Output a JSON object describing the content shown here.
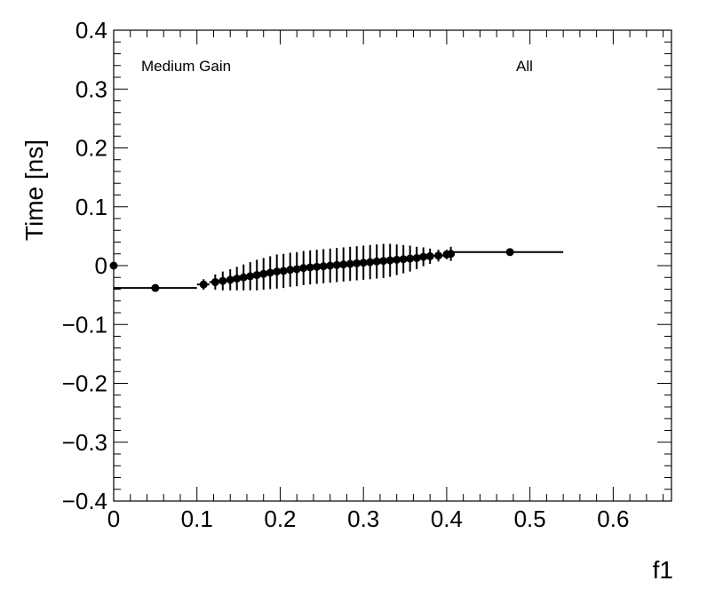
{
  "chart_data": {
    "type": "scatter",
    "title": "",
    "xlabel": "f1",
    "ylabel": "Time [ns]",
    "xlim": [
      0,
      0.67
    ],
    "ylim": [
      -0.4,
      0.4
    ],
    "x_ticks": [
      0,
      0.1,
      0.2,
      0.3,
      0.4,
      0.5,
      0.6
    ],
    "x_tick_labels": [
      "0",
      "0.1",
      "0.2",
      "0.3",
      "0.4",
      "0.5",
      "0.6"
    ],
    "y_ticks": [
      -0.4,
      -0.3,
      -0.2,
      -0.1,
      0,
      0.1,
      0.2,
      0.3,
      0.4
    ],
    "y_tick_labels": [
      "−0.4",
      "−0.3",
      "−0.2",
      "−0.1",
      "0",
      "0.1",
      "0.2",
      "0.3",
      "0.4"
    ],
    "grid": false,
    "annotations": [
      "Medium Gain",
      "All"
    ],
    "series": [
      {
        "marker": "circle",
        "color": "#000000",
        "points": [
          {
            "x": 0.0,
            "y": 0.0,
            "xlo": 0.0,
            "xhi": 0.0,
            "yerr": 0.0
          },
          {
            "x": 0.05,
            "y": -0.038,
            "xlo": 0.0,
            "xhi": 0.1,
            "yerr": 0.0
          },
          {
            "x": 0.108,
            "y": -0.032,
            "xlo": 0.1,
            "xhi": 0.115,
            "yerr": 0.009
          },
          {
            "x": 0.122,
            "y": -0.028,
            "xlo": 0.115,
            "xhi": 0.126,
            "yerr": 0.013
          },
          {
            "x": 0.131,
            "y": -0.026,
            "xlo": 0.126,
            "xhi": 0.136,
            "yerr": 0.016
          },
          {
            "x": 0.14,
            "y": -0.024,
            "xlo": 0.136,
            "xhi": 0.145,
            "yerr": 0.018
          },
          {
            "x": 0.148,
            "y": -0.022,
            "xlo": 0.145,
            "xhi": 0.152,
            "yerr": 0.02
          },
          {
            "x": 0.156,
            "y": -0.02,
            "xlo": 0.152,
            "xhi": 0.16,
            "yerr": 0.022
          },
          {
            "x": 0.164,
            "y": -0.018,
            "xlo": 0.16,
            "xhi": 0.168,
            "yerr": 0.024
          },
          {
            "x": 0.172,
            "y": -0.016,
            "xlo": 0.168,
            "xhi": 0.176,
            "yerr": 0.026
          },
          {
            "x": 0.18,
            "y": -0.014,
            "xlo": 0.176,
            "xhi": 0.184,
            "yerr": 0.027
          },
          {
            "x": 0.188,
            "y": -0.012,
            "xlo": 0.184,
            "xhi": 0.192,
            "yerr": 0.028
          },
          {
            "x": 0.196,
            "y": -0.01,
            "xlo": 0.192,
            "xhi": 0.2,
            "yerr": 0.029
          },
          {
            "x": 0.204,
            "y": -0.009,
            "xlo": 0.2,
            "xhi": 0.208,
            "yerr": 0.029
          },
          {
            "x": 0.212,
            "y": -0.007,
            "xlo": 0.208,
            "xhi": 0.216,
            "yerr": 0.029
          },
          {
            "x": 0.22,
            "y": -0.006,
            "xlo": 0.216,
            "xhi": 0.224,
            "yerr": 0.029
          },
          {
            "x": 0.228,
            "y": -0.004,
            "xlo": 0.224,
            "xhi": 0.232,
            "yerr": 0.029
          },
          {
            "x": 0.236,
            "y": -0.003,
            "xlo": 0.232,
            "xhi": 0.24,
            "yerr": 0.029
          },
          {
            "x": 0.244,
            "y": -0.002,
            "xlo": 0.24,
            "xhi": 0.248,
            "yerr": 0.029
          },
          {
            "x": 0.252,
            "y": -0.001,
            "xlo": 0.248,
            "xhi": 0.256,
            "yerr": 0.029
          },
          {
            "x": 0.26,
            "y": 0.0,
            "xlo": 0.256,
            "xhi": 0.264,
            "yerr": 0.029
          },
          {
            "x": 0.268,
            "y": 0.001,
            "xlo": 0.264,
            "xhi": 0.272,
            "yerr": 0.029
          },
          {
            "x": 0.276,
            "y": 0.002,
            "xlo": 0.272,
            "xhi": 0.28,
            "yerr": 0.029
          },
          {
            "x": 0.284,
            "y": 0.003,
            "xlo": 0.28,
            "xhi": 0.288,
            "yerr": 0.029
          },
          {
            "x": 0.292,
            "y": 0.004,
            "xlo": 0.288,
            "xhi": 0.296,
            "yerr": 0.029
          },
          {
            "x": 0.3,
            "y": 0.005,
            "xlo": 0.296,
            "xhi": 0.304,
            "yerr": 0.029
          },
          {
            "x": 0.308,
            "y": 0.006,
            "xlo": 0.304,
            "xhi": 0.312,
            "yerr": 0.029
          },
          {
            "x": 0.316,
            "y": 0.007,
            "xlo": 0.312,
            "xhi": 0.32,
            "yerr": 0.029
          },
          {
            "x": 0.324,
            "y": 0.008,
            "xlo": 0.32,
            "xhi": 0.328,
            "yerr": 0.029
          },
          {
            "x": 0.332,
            "y": 0.009,
            "xlo": 0.328,
            "xhi": 0.336,
            "yerr": 0.028
          },
          {
            "x": 0.34,
            "y": 0.01,
            "xlo": 0.336,
            "xhi": 0.344,
            "yerr": 0.026
          },
          {
            "x": 0.348,
            "y": 0.011,
            "xlo": 0.344,
            "xhi": 0.352,
            "yerr": 0.024
          },
          {
            "x": 0.356,
            "y": 0.012,
            "xlo": 0.352,
            "xhi": 0.36,
            "yerr": 0.022
          },
          {
            "x": 0.364,
            "y": 0.013,
            "xlo": 0.36,
            "xhi": 0.368,
            "yerr": 0.019
          },
          {
            "x": 0.372,
            "y": 0.015,
            "xlo": 0.368,
            "xhi": 0.376,
            "yerr": 0.016
          },
          {
            "x": 0.38,
            "y": 0.016,
            "xlo": 0.376,
            "xhi": 0.384,
            "yerr": 0.013
          },
          {
            "x": 0.39,
            "y": 0.017,
            "xlo": 0.384,
            "xhi": 0.396,
            "yerr": 0.01
          },
          {
            "x": 0.4,
            "y": 0.019,
            "xlo": 0.396,
            "xhi": 0.405,
            "yerr": 0.008
          },
          {
            "x": 0.405,
            "y": 0.02,
            "xlo": 0.403,
            "xhi": 0.407,
            "yerr": 0.012
          },
          {
            "x": 0.476,
            "y": 0.023,
            "xlo": 0.407,
            "xhi": 0.54,
            "yerr": 0.002
          }
        ]
      }
    ]
  }
}
